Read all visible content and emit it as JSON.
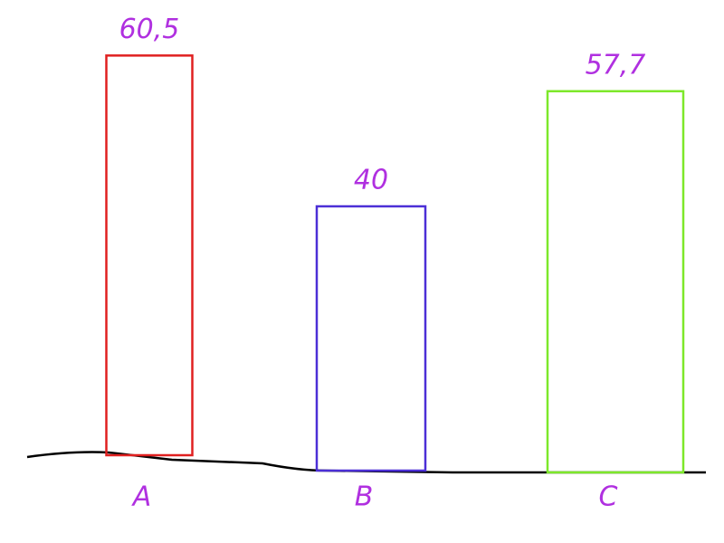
{
  "chart_data": {
    "type": "bar",
    "categories": [
      "A",
      "B",
      "C"
    ],
    "values": [
      60.5,
      40,
      57.7
    ],
    "value_labels": [
      "60,5",
      "40",
      "57,7"
    ],
    "colors": [
      "#e02020",
      "#4b2fd6",
      "#7de82a"
    ],
    "label_color": "#b030e0"
  }
}
